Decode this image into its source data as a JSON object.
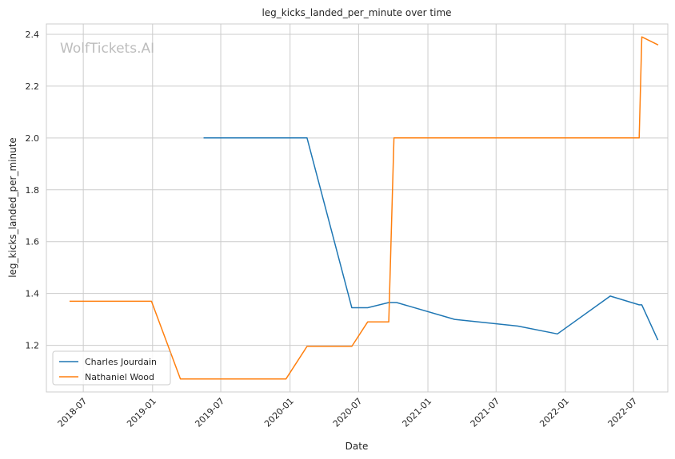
{
  "chart_data": {
    "type": "line",
    "title": "leg_kicks_landed_per_minute over time",
    "xlabel": "Date",
    "ylabel": "leg_kicks_landed_per_minute",
    "watermark": "WolfTickets.AI",
    "xlim": [
      "2018-03-25",
      "2022-09-30"
    ],
    "ylim": [
      1.02,
      2.44
    ],
    "x_ticks": [
      "2018-07",
      "2019-01",
      "2019-07",
      "2020-01",
      "2020-07",
      "2021-01",
      "2021-07",
      "2022-01",
      "2022-07"
    ],
    "y_ticks": [
      "1.2",
      "1.4",
      "1.6",
      "1.8",
      "2.0",
      "2.2",
      "2.4"
    ],
    "grid": true,
    "legend_position": "lower-left",
    "series": [
      {
        "name": "Charles Jourdain",
        "color": "#1f77b4",
        "points": [
          [
            "2019-05-18",
            2.0
          ],
          [
            "2020-02-15",
            2.0
          ],
          [
            "2020-06-13",
            1.345
          ],
          [
            "2020-07-25",
            1.345
          ],
          [
            "2020-09-19",
            1.365
          ],
          [
            "2020-10-10",
            1.365
          ],
          [
            "2021-03-13",
            1.3
          ],
          [
            "2021-08-28",
            1.274
          ],
          [
            "2021-12-11",
            1.244
          ],
          [
            "2022-04-30",
            1.39
          ],
          [
            "2022-07-16",
            1.356
          ],
          [
            "2022-07-23",
            1.356
          ],
          [
            "2022-09-03",
            1.222
          ]
        ]
      },
      {
        "name": "Nathaniel Wood",
        "color": "#ff7f0e",
        "points": [
          [
            "2018-05-27",
            1.37
          ],
          [
            "2018-12-29",
            1.37
          ],
          [
            "2019-03-16",
            1.07
          ],
          [
            "2019-12-21",
            1.07
          ],
          [
            "2020-02-15",
            1.196
          ],
          [
            "2020-06-13",
            1.196
          ],
          [
            "2020-07-25",
            1.29
          ],
          [
            "2020-09-19",
            1.29
          ],
          [
            "2020-10-03",
            2.0
          ],
          [
            "2022-07-16",
            2.0
          ],
          [
            "2022-07-23",
            2.39
          ],
          [
            "2022-09-03",
            2.36
          ]
        ]
      }
    ]
  }
}
